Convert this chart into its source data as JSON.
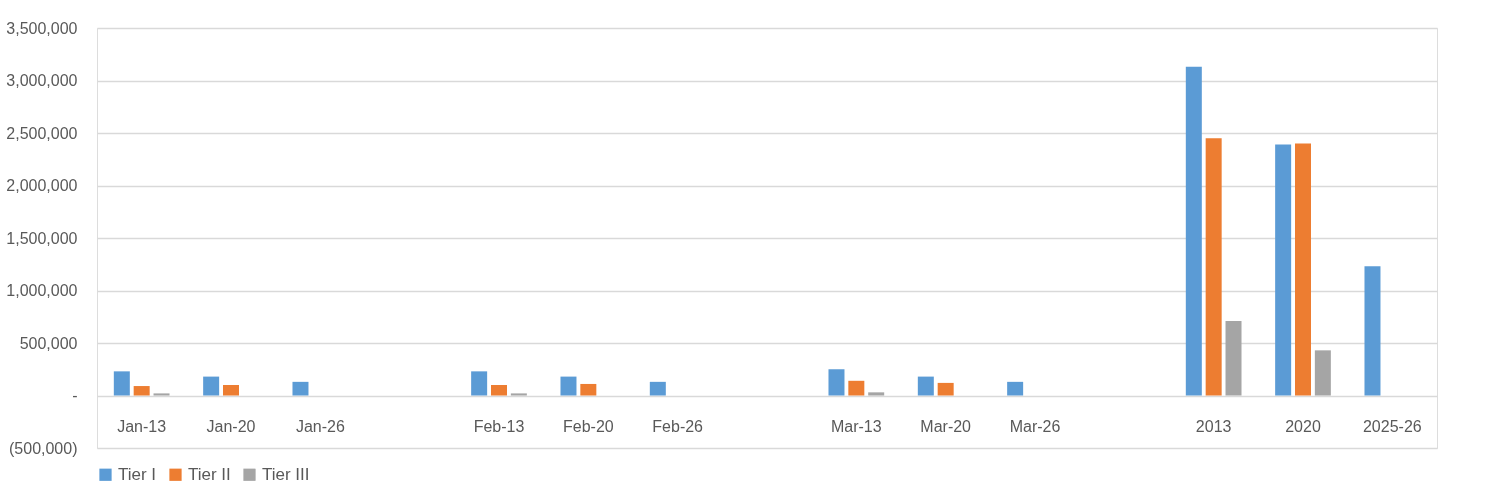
{
  "chart_data": {
    "type": "bar",
    "categories": [
      "Jan-13",
      "Jan-20",
      "Jan-26",
      null,
      "Feb-13",
      "Feb-20",
      "Feb-26",
      null,
      "Mar-13",
      "Mar-20",
      "Mar-26",
      null,
      "2013",
      "2020",
      "2025-26"
    ],
    "series": [
      {
        "name": "Tier I",
        "color": "#5b9bd5",
        "values": [
          230000,
          180000,
          130000,
          null,
          230000,
          180000,
          130000,
          null,
          250000,
          180000,
          130000,
          null,
          3130000,
          2390000,
          1230000
        ]
      },
      {
        "name": "Tier II",
        "color": "#ed7d31",
        "values": [
          90000,
          100000,
          null,
          null,
          100000,
          110000,
          null,
          null,
          140000,
          120000,
          null,
          null,
          2450000,
          2400000,
          null
        ]
      },
      {
        "name": "Tier III",
        "color": "#a5a5a5",
        "values": [
          20000,
          null,
          null,
          null,
          20000,
          null,
          null,
          null,
          30000,
          null,
          null,
          null,
          710000,
          430000,
          null
        ]
      }
    ],
    "ylim": [
      -500000,
      3500000
    ],
    "yticks": [
      {
        "value": -500000,
        "label": "(500,000)"
      },
      {
        "value": 0,
        "label": "-"
      },
      {
        "value": 500000,
        "label": "500,000"
      },
      {
        "value": 1000000,
        "label": "1,000,000"
      },
      {
        "value": 1500000,
        "label": "1,500,000"
      },
      {
        "value": 2000000,
        "label": "2,000,000"
      },
      {
        "value": 2500000,
        "label": "2,500,000"
      },
      {
        "value": 3000000,
        "label": "3,000,000"
      },
      {
        "value": 3500000,
        "label": "3,500,000"
      }
    ],
    "grid": "y",
    "legend": "bottom"
  }
}
